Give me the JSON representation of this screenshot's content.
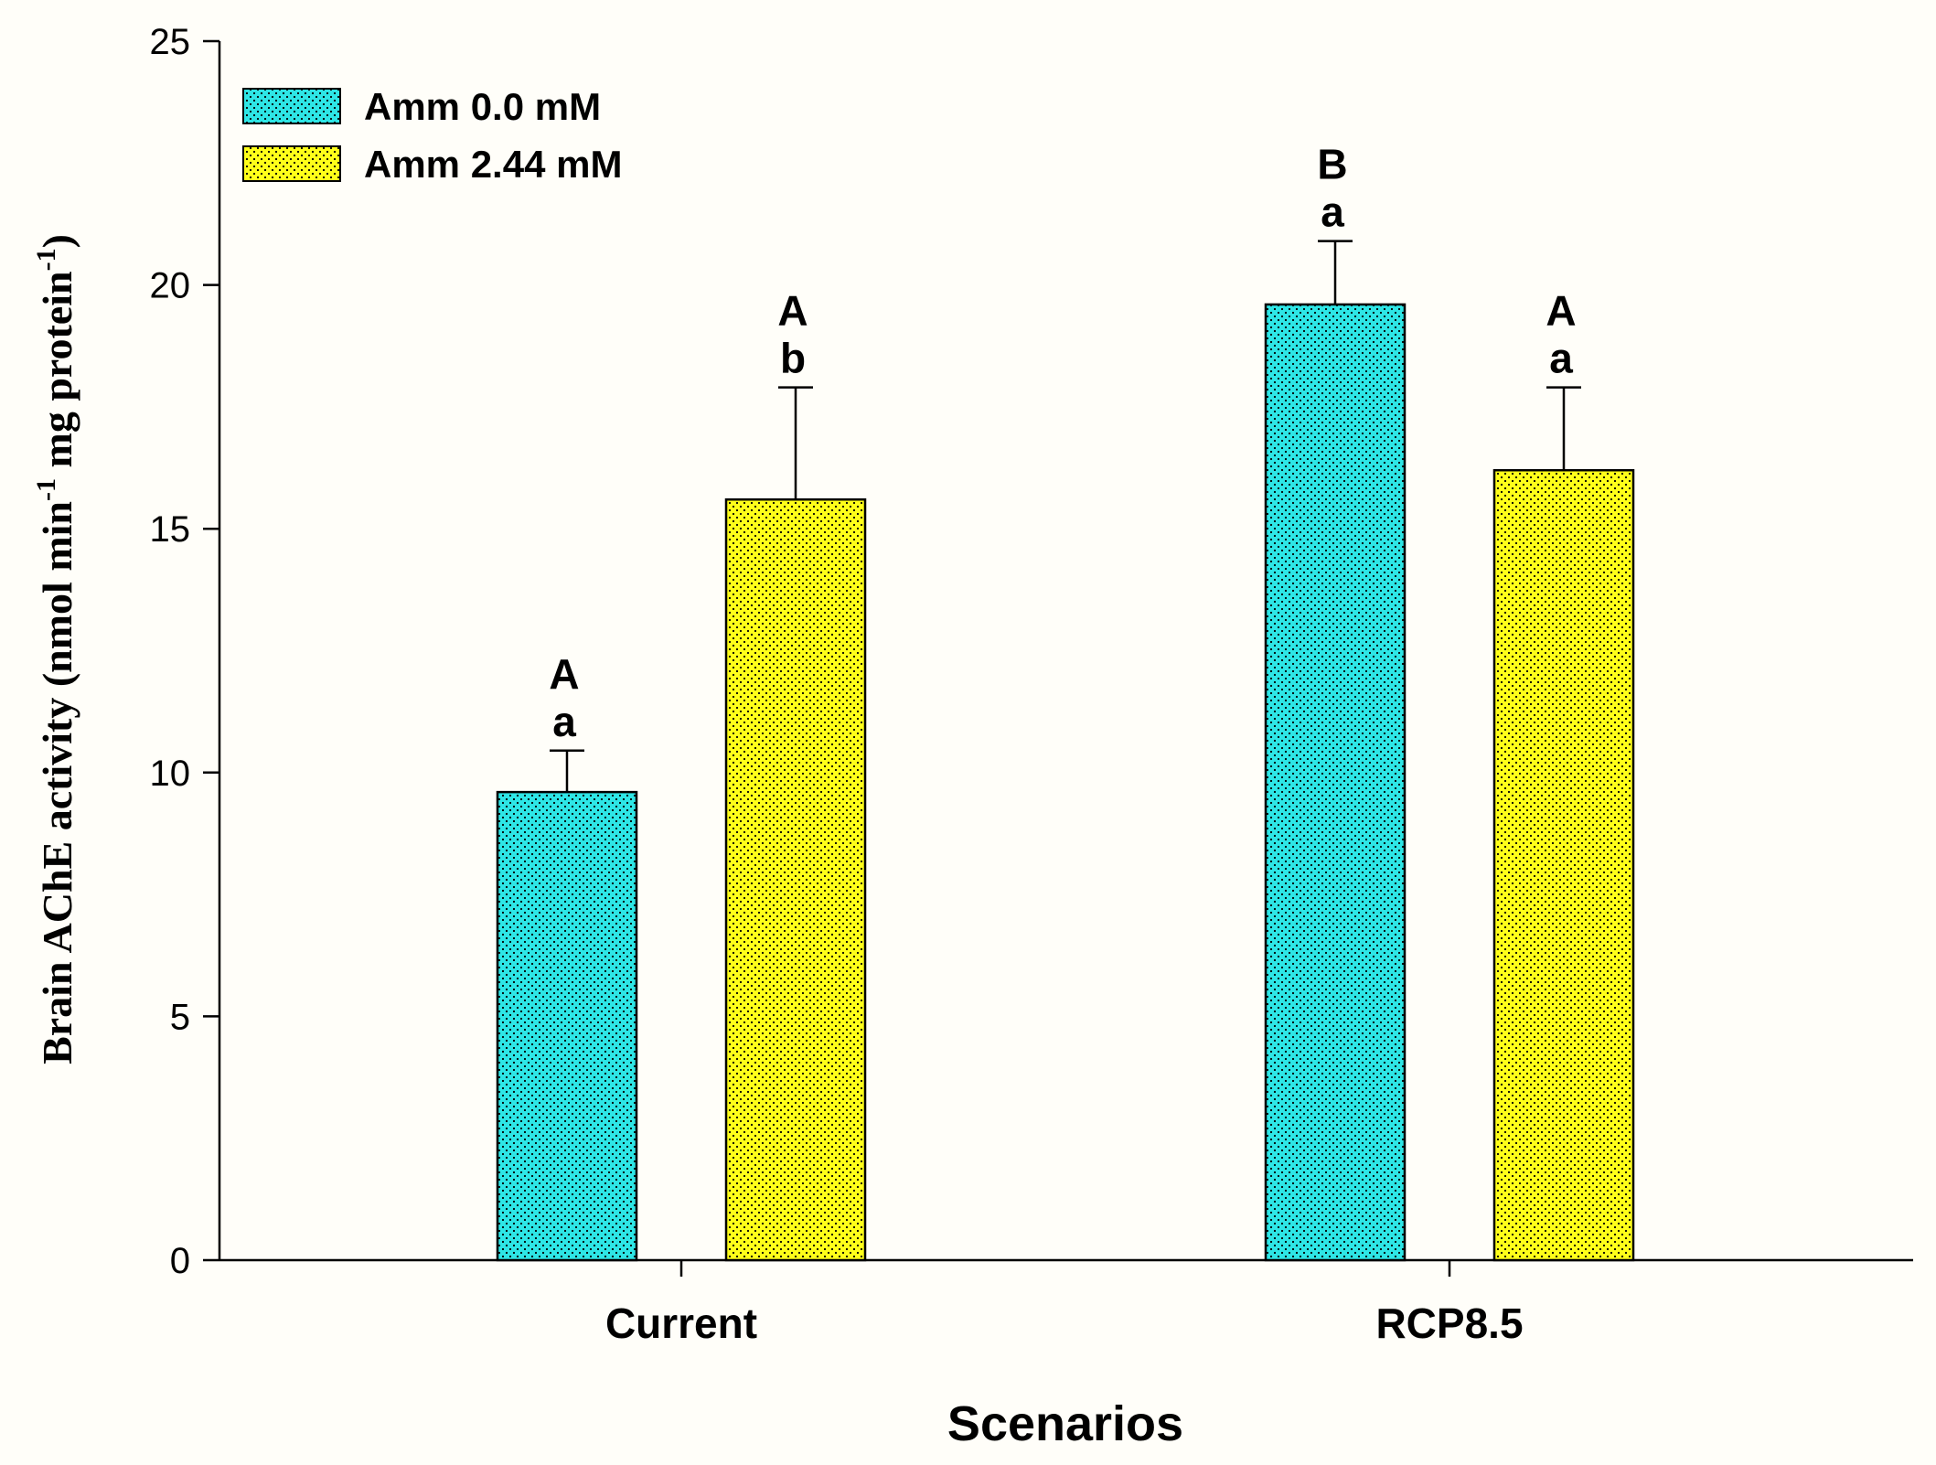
{
  "chart_data": {
    "type": "bar",
    "categories": [
      "Current",
      "RCP8.5"
    ],
    "series": [
      {
        "name": "Amm 0.0 mM",
        "color": "#2ee6e6",
        "values": [
          9.6,
          19.6
        ],
        "errors": [
          0.85,
          1.3
        ],
        "labels_upper": [
          "A",
          "B"
        ],
        "labels_lower": [
          "a",
          "a"
        ]
      },
      {
        "name": "Amm 2.44 mM",
        "color": "#ffff1a",
        "values": [
          15.6,
          16.2
        ],
        "errors": [
          2.3,
          1.7
        ],
        "labels_upper": [
          "A",
          "A"
        ],
        "labels_lower": [
          "b",
          "a"
        ]
      }
    ],
    "xlabel": "Scenarios",
    "ylabel": {
      "main": "Brain AChE activity (nmol min",
      "sup1": "-1",
      "mid": " mg protein",
      "sup2": "-1",
      "end": ")"
    },
    "ylim": [
      0,
      25
    ],
    "yticks": [
      "0",
      "5",
      "10",
      "15",
      "20",
      "25"
    ],
    "legend_position": "top-left"
  }
}
